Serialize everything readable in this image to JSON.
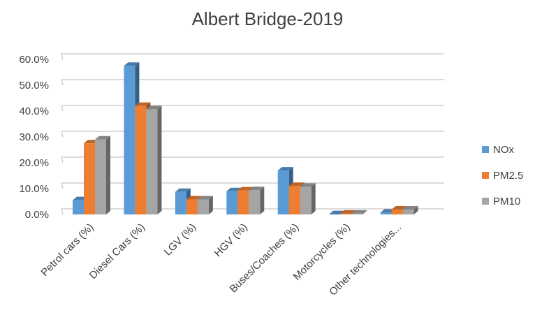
{
  "chart_data": {
    "type": "bar",
    "title": "Albert Bridge-2019",
    "xlabel": "",
    "ylabel": "",
    "categories": [
      "Petrol cars (%)",
      "Diesel Cars (%)",
      "LGV (%)",
      "HGV (%)",
      "Buses/Coaches (%)",
      "Motorcycles (%)",
      "Other technologies..."
    ],
    "series": [
      {
        "name": "NOx",
        "values": [
          5.5,
          57.5,
          8.7,
          9.0,
          17.0,
          0.1,
          0.7
        ]
      },
      {
        "name": "PM2.5",
        "values": [
          27.5,
          42.0,
          5.8,
          9.3,
          11.0,
          0.3,
          1.9
        ]
      },
      {
        "name": "PM10",
        "values": [
          29.0,
          40.7,
          5.8,
          9.4,
          10.7,
          0.3,
          1.9
        ]
      }
    ],
    "ylim": [
      0,
      60
    ],
    "y_ticks": [
      "0.0%",
      "10.0%",
      "20.0%",
      "30.0%",
      "40.0%",
      "50.0%",
      "60.0%"
    ],
    "grid": true,
    "legend_position": "right",
    "style": "3d-clustered-column"
  },
  "colors": {
    "NOx": "#5b9bd5",
    "PM2.5": "#ed7d31",
    "PM10": "#a5a5a5",
    "gridline": "#c8c8c8",
    "text": "#404040"
  }
}
